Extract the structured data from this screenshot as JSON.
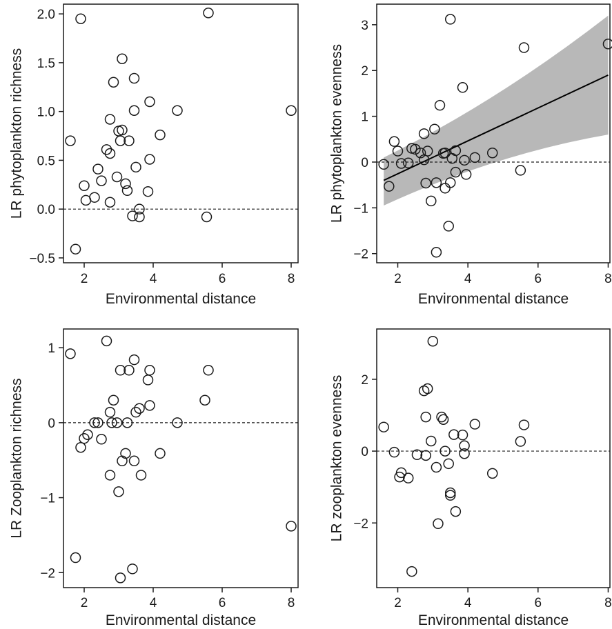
{
  "colors": {
    "axis": "#1a1a1a",
    "ci_band": "#b8b8b8",
    "point_stroke": "#1a1a1a",
    "fit_line": "#000000"
  },
  "chart_data": [
    {
      "type": "scatter",
      "xlabel": "Environmental distance",
      "ylabel": "LR phytoplankton richness",
      "xlim": [
        1.4,
        8.2
      ],
      "ylim": [
        -0.55,
        2.1
      ],
      "xticks": [
        2,
        4,
        6,
        8
      ],
      "yticks": [
        -0.5,
        0.0,
        0.5,
        1.0,
        1.5,
        2.0
      ],
      "ytick_labels": [
        "−0.5",
        "0.0",
        "0.5",
        "1.0",
        "1.5",
        "2.0"
      ],
      "reference_line_y": 0,
      "grid": false,
      "points": [
        [
          1.6,
          0.7
        ],
        [
          1.75,
          -0.41
        ],
        [
          1.9,
          1.95
        ],
        [
          2.0,
          0.24
        ],
        [
          2.05,
          0.09
        ],
        [
          2.3,
          0.12
        ],
        [
          2.4,
          0.41
        ],
        [
          2.5,
          0.29
        ],
        [
          2.65,
          0.61
        ],
        [
          2.75,
          0.92
        ],
        [
          2.75,
          0.57
        ],
        [
          2.85,
          1.3
        ],
        [
          2.95,
          0.33
        ],
        [
          3.0,
          0.8
        ],
        [
          3.05,
          0.7
        ],
        [
          3.1,
          1.54
        ],
        [
          3.1,
          0.81
        ],
        [
          3.2,
          0.26
        ],
        [
          3.25,
          0.19
        ],
        [
          3.3,
          0.7
        ],
        [
          3.4,
          -0.07
        ],
        [
          3.45,
          1.34
        ],
        [
          3.45,
          1.01
        ],
        [
          3.5,
          0.43
        ],
        [
          3.6,
          0.0
        ],
        [
          3.6,
          -0.08
        ],
        [
          3.85,
          0.18
        ],
        [
          3.9,
          1.1
        ],
        [
          3.9,
          0.51
        ],
        [
          4.2,
          0.76
        ],
        [
          4.7,
          1.01
        ],
        [
          5.55,
          -0.08
        ],
        [
          5.6,
          2.01
        ],
        [
          8.0,
          1.01
        ],
        [
          2.75,
          0.07
        ]
      ]
    },
    {
      "type": "scatter",
      "xlabel": "Environmental distance",
      "ylabel": "LR phytoplankton evenness",
      "xlim": [
        1.4,
        8.05
      ],
      "ylim": [
        -2.2,
        3.45
      ],
      "xticks": [
        2,
        4,
        6,
        8
      ],
      "yticks": [
        -2,
        -1,
        0,
        1,
        2,
        3
      ],
      "ytick_labels": [
        "−2",
        "−1",
        "0",
        "1",
        "2",
        "3"
      ],
      "reference_line_y": 0,
      "grid": false,
      "fit_line": {
        "x": [
          1.6,
          8.0
        ],
        "y": [
          -0.4,
          1.9
        ]
      },
      "ci_band": {
        "x": [
          1.6,
          8.0
        ],
        "upper": [
          0.1,
          3.2
        ],
        "lower": [
          -0.95,
          0.6
        ]
      },
      "points": [
        [
          1.6,
          -0.05
        ],
        [
          1.75,
          -0.53
        ],
        [
          1.9,
          0.45
        ],
        [
          2.0,
          0.24
        ],
        [
          2.1,
          -0.03
        ],
        [
          2.3,
          -0.02
        ],
        [
          2.4,
          0.3
        ],
        [
          2.5,
          0.28
        ],
        [
          2.65,
          0.2
        ],
        [
          2.75,
          0.62
        ],
        [
          2.75,
          0.05
        ],
        [
          2.8,
          -0.46
        ],
        [
          2.85,
          0.24
        ],
        [
          2.95,
          -0.85
        ],
        [
          3.05,
          0.72
        ],
        [
          3.1,
          -1.97
        ],
        [
          3.1,
          -0.45
        ],
        [
          3.2,
          1.24
        ],
        [
          3.3,
          0.19
        ],
        [
          3.35,
          0.2
        ],
        [
          3.35,
          -0.57
        ],
        [
          3.45,
          -1.4
        ],
        [
          3.5,
          3.12
        ],
        [
          3.5,
          -0.45
        ],
        [
          3.55,
          0.08
        ],
        [
          3.65,
          0.25
        ],
        [
          3.65,
          -0.22
        ],
        [
          3.85,
          1.63
        ],
        [
          3.9,
          0.04
        ],
        [
          3.95,
          -0.27
        ],
        [
          4.2,
          0.1
        ],
        [
          4.7,
          0.2
        ],
        [
          5.5,
          -0.18
        ],
        [
          5.6,
          2.5
        ],
        [
          8.0,
          2.58
        ]
      ]
    },
    {
      "type": "scatter",
      "xlabel": "Environmental distance",
      "ylabel": "LR Zooplankton richness",
      "xlim": [
        1.4,
        8.2
      ],
      "ylim": [
        -2.2,
        1.25
      ],
      "xticks": [
        2,
        4,
        6,
        8
      ],
      "yticks": [
        -2,
        -1,
        0,
        1
      ],
      "ytick_labels": [
        "−2",
        "−1",
        "0",
        "1"
      ],
      "reference_line_y": 0,
      "grid": false,
      "points": [
        [
          1.6,
          0.92
        ],
        [
          1.75,
          -1.8
        ],
        [
          1.9,
          -0.33
        ],
        [
          2.0,
          -0.21
        ],
        [
          2.1,
          -0.16
        ],
        [
          2.3,
          0.0
        ],
        [
          2.4,
          0.0
        ],
        [
          2.5,
          -0.22
        ],
        [
          2.65,
          1.09
        ],
        [
          2.75,
          0.14
        ],
        [
          2.75,
          -0.7
        ],
        [
          2.8,
          0.0
        ],
        [
          2.85,
          0.3
        ],
        [
          2.95,
          0.0
        ],
        [
          3.0,
          -0.92
        ],
        [
          3.05,
          0.7
        ],
        [
          3.05,
          -2.07
        ],
        [
          3.1,
          -0.51
        ],
        [
          3.2,
          -0.41
        ],
        [
          3.25,
          0.0
        ],
        [
          3.3,
          0.7
        ],
        [
          3.4,
          -1.95
        ],
        [
          3.45,
          0.84
        ],
        [
          3.45,
          -0.51
        ],
        [
          3.5,
          0.14
        ],
        [
          3.6,
          0.19
        ],
        [
          3.65,
          -0.7
        ],
        [
          3.85,
          0.57
        ],
        [
          3.9,
          0.7
        ],
        [
          3.9,
          0.23
        ],
        [
          4.2,
          -0.41
        ],
        [
          4.7,
          0.0
        ],
        [
          5.5,
          0.3
        ],
        [
          5.6,
          0.7
        ],
        [
          8.0,
          -1.38
        ]
      ]
    },
    {
      "type": "scatter",
      "xlabel": "Environmental distance",
      "ylabel": "LR zooplankton evenness",
      "xlim": [
        1.4,
        8.05
      ],
      "ylim": [
        -3.8,
        3.4
      ],
      "xticks": [
        2,
        4,
        6,
        8
      ],
      "yticks": [
        -2,
        0,
        2
      ],
      "ytick_labels": [
        "−2",
        "0",
        "2"
      ],
      "reference_line_y": 0,
      "grid": false,
      "points": [
        [
          1.6,
          0.67
        ],
        [
          1.9,
          -0.03
        ],
        [
          2.05,
          -0.72
        ],
        [
          2.1,
          -0.6
        ],
        [
          2.3,
          -0.75
        ],
        [
          2.4,
          -3.35
        ],
        [
          2.55,
          -0.1
        ],
        [
          2.75,
          1.68
        ],
        [
          2.8,
          0.95
        ],
        [
          2.8,
          -0.12
        ],
        [
          2.85,
          1.74
        ],
        [
          2.95,
          0.28
        ],
        [
          3.0,
          3.06
        ],
        [
          3.1,
          -0.45
        ],
        [
          3.15,
          -2.02
        ],
        [
          3.25,
          0.95
        ],
        [
          3.3,
          0.88
        ],
        [
          3.35,
          0.0
        ],
        [
          3.45,
          -0.35
        ],
        [
          3.5,
          -1.16
        ],
        [
          3.5,
          -1.23
        ],
        [
          3.6,
          0.46
        ],
        [
          3.65,
          -1.68
        ],
        [
          3.85,
          0.45
        ],
        [
          3.9,
          0.15
        ],
        [
          3.9,
          -0.07
        ],
        [
          4.2,
          0.75
        ],
        [
          4.7,
          -0.62
        ],
        [
          5.5,
          0.27
        ],
        [
          5.6,
          0.73
        ]
      ]
    }
  ]
}
